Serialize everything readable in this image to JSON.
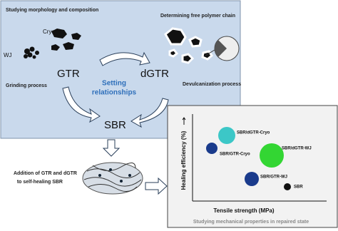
{
  "top_left": {
    "heading": "Studying morphology and composition",
    "cryo": "Cryo",
    "wj": "WJ",
    "material": "GTR",
    "process": "Grinding process"
  },
  "top_right": {
    "heading": "Determining free polymer chain",
    "material": "dGTR",
    "process": "Devulcanization process"
  },
  "center": {
    "relationship": [
      "Setting",
      "relationships"
    ],
    "matrix": "SBR"
  },
  "addition": [
    "Addition of GTR and dGTR",
    "to self-healing SBR"
  ],
  "chart": {
    "y_label": "Healing efficiency (%)",
    "x_label": "Tensile strength (MPa)",
    "caption": "Studying mechanical properties in repaired state",
    "labels": [
      "SBR/dGTR-Cryo",
      "SBR/GTR-Cryo",
      "SBR/dGTR-WJ",
      "SBR/GTR-WJ",
      "SBR"
    ]
  }
}
